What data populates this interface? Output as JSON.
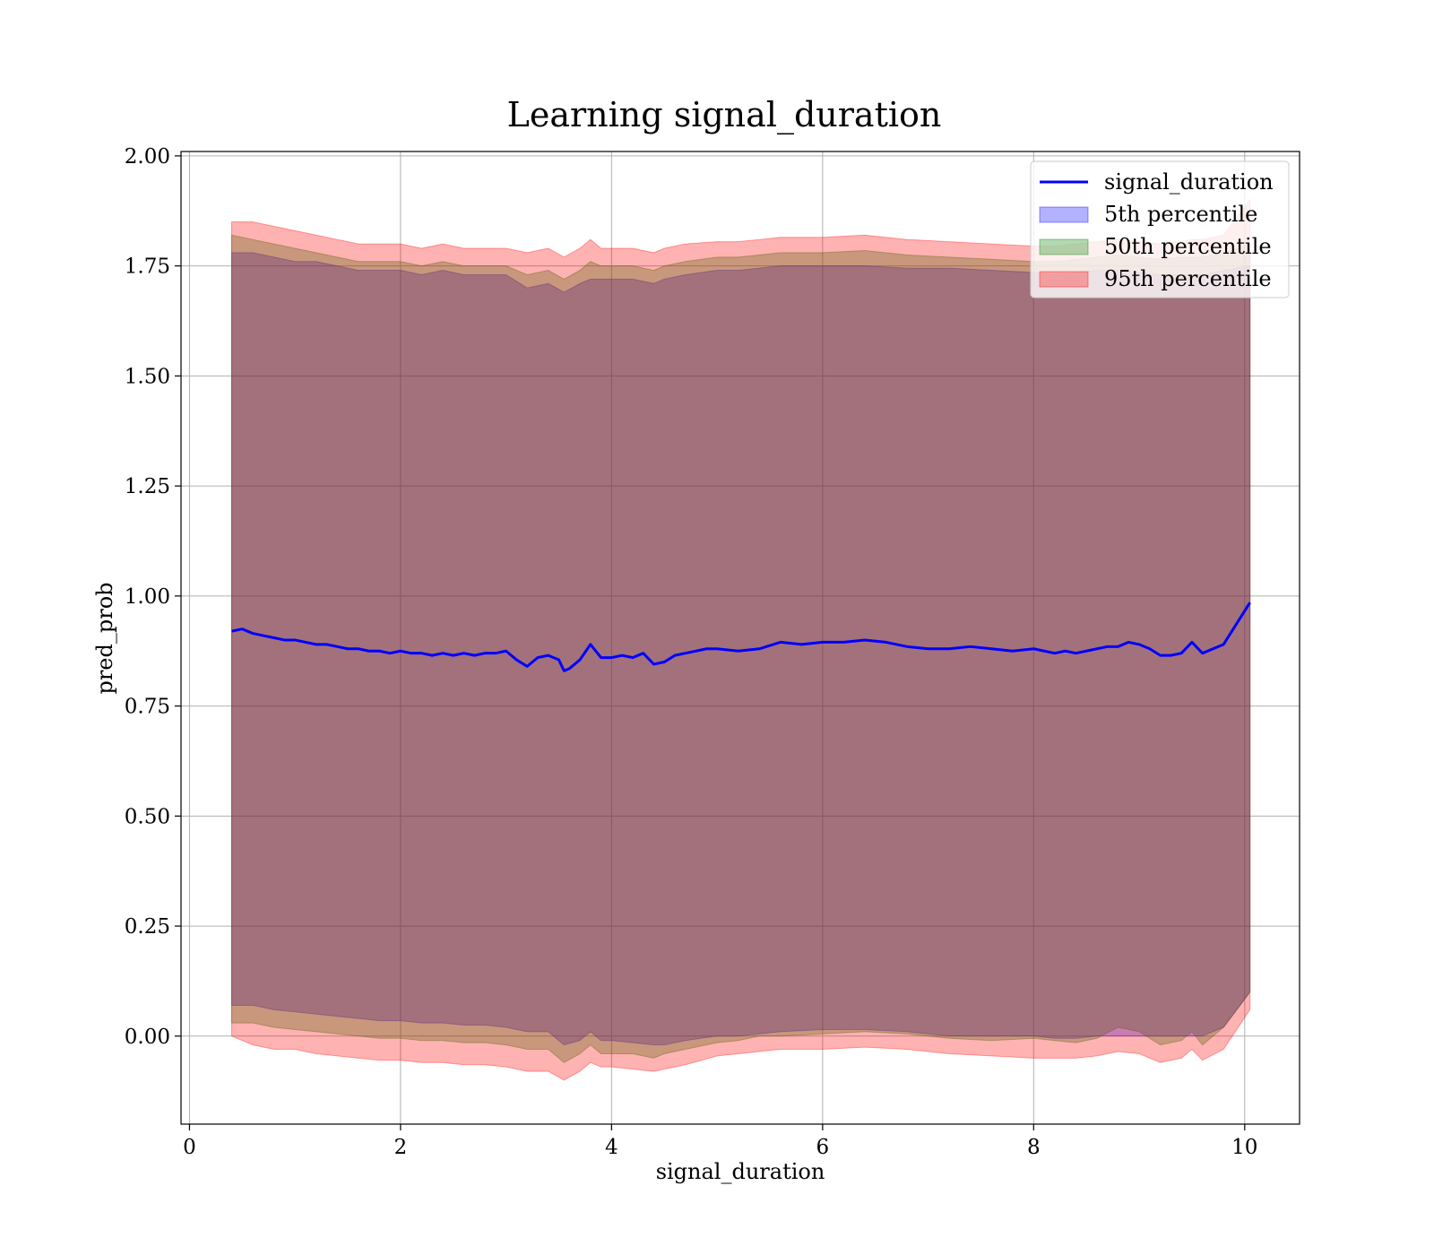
{
  "chart_data": {
    "type": "area",
    "title": "Learning signal_duration",
    "xlabel": "signal_duration",
    "ylabel": "pred_prob",
    "xlim": [
      -0.08,
      10.52
    ],
    "ylim": [
      -0.2,
      2.01
    ],
    "xticks": [
      0,
      2,
      4,
      6,
      8,
      10
    ],
    "xtick_labels": [
      "0",
      "2",
      "4",
      "6",
      "8",
      "10"
    ],
    "yticks": [
      0.0,
      0.25,
      0.5,
      0.75,
      1.0,
      1.25,
      1.5,
      1.75,
      2.0
    ],
    "ytick_labels": [
      "0.00",
      "0.25",
      "0.50",
      "0.75",
      "1.00",
      "1.25",
      "1.50",
      "1.75",
      "2.00"
    ],
    "grid": true,
    "legend_position": "top-right",
    "legend": [
      {
        "label": "signal_duration",
        "kind": "line",
        "color": "#0000ff"
      },
      {
        "label": "5th percentile",
        "kind": "patch",
        "color": "#0000ff"
      },
      {
        "label": "50th percentile",
        "kind": "patch",
        "color": "#008000"
      },
      {
        "label": "95th percentile",
        "kind": "patch",
        "color": "#ff0000"
      }
    ],
    "series": [
      {
        "name": "signal_duration",
        "kind": "line",
        "color": "#0000ff",
        "x": [
          0.4,
          0.5,
          0.6,
          0.7,
          0.8,
          0.9,
          1.0,
          1.1,
          1.2,
          1.3,
          1.4,
          1.5,
          1.6,
          1.7,
          1.8,
          1.9,
          2.0,
          2.1,
          2.2,
          2.3,
          2.4,
          2.5,
          2.6,
          2.7,
          2.8,
          2.9,
          3.0,
          3.1,
          3.2,
          3.3,
          3.4,
          3.5,
          3.55,
          3.6,
          3.7,
          3.8,
          3.9,
          4.0,
          4.1,
          4.2,
          4.3,
          4.4,
          4.5,
          4.6,
          4.7,
          4.8,
          4.9,
          5.0,
          5.2,
          5.4,
          5.6,
          5.8,
          6.0,
          6.2,
          6.4,
          6.6,
          6.8,
          7.0,
          7.2,
          7.4,
          7.6,
          7.8,
          8.0,
          8.1,
          8.2,
          8.3,
          8.4,
          8.5,
          8.6,
          8.7,
          8.8,
          8.9,
          9.0,
          9.1,
          9.2,
          9.3,
          9.4,
          9.5,
          9.6,
          9.8,
          10.05
        ],
        "y": [
          0.92,
          0.925,
          0.915,
          0.91,
          0.905,
          0.9,
          0.9,
          0.895,
          0.89,
          0.89,
          0.885,
          0.88,
          0.88,
          0.875,
          0.875,
          0.87,
          0.875,
          0.87,
          0.87,
          0.865,
          0.87,
          0.865,
          0.87,
          0.865,
          0.87,
          0.87,
          0.875,
          0.855,
          0.84,
          0.86,
          0.865,
          0.855,
          0.83,
          0.835,
          0.855,
          0.89,
          0.86,
          0.86,
          0.865,
          0.86,
          0.87,
          0.845,
          0.85,
          0.865,
          0.87,
          0.875,
          0.88,
          0.88,
          0.875,
          0.88,
          0.895,
          0.89,
          0.895,
          0.895,
          0.9,
          0.895,
          0.885,
          0.88,
          0.88,
          0.885,
          0.88,
          0.875,
          0.88,
          0.875,
          0.87,
          0.875,
          0.87,
          0.875,
          0.88,
          0.885,
          0.885,
          0.895,
          0.89,
          0.88,
          0.865,
          0.865,
          0.87,
          0.895,
          0.87,
          0.89,
          0.985
        ]
      },
      {
        "name": "5th percentile",
        "kind": "band",
        "color": "#0000ff",
        "x": [
          0.4,
          0.6,
          0.8,
          1.0,
          1.2,
          1.4,
          1.6,
          1.8,
          2.0,
          2.2,
          2.4,
          2.6,
          2.8,
          3.0,
          3.2,
          3.4,
          3.55,
          3.7,
          3.8,
          3.9,
          4.0,
          4.2,
          4.4,
          4.5,
          4.7,
          5.0,
          5.2,
          5.4,
          5.6,
          6.0,
          6.4,
          6.8,
          7.2,
          7.6,
          8.0,
          8.2,
          8.4,
          8.6,
          8.8,
          9.0,
          9.2,
          9.4,
          9.5,
          9.6,
          9.8,
          10.05
        ],
        "lower": [
          0.07,
          0.07,
          0.06,
          0.055,
          0.05,
          0.045,
          0.04,
          0.035,
          0.035,
          0.03,
          0.03,
          0.025,
          0.025,
          0.02,
          0.01,
          0.01,
          -0.02,
          -0.01,
          0.01,
          -0.01,
          -0.01,
          -0.015,
          -0.02,
          -0.02,
          -0.01,
          0.0,
          0.0,
          0.005,
          0.01,
          0.015,
          0.015,
          0.01,
          0.0,
          0.0,
          0.0,
          -0.005,
          -0.005,
          0.0,
          0.0,
          0.0,
          0.0,
          0.0,
          0.0,
          0.0,
          0.02,
          0.1
        ],
        "upper": [
          1.78,
          1.78,
          1.77,
          1.76,
          1.76,
          1.75,
          1.74,
          1.74,
          1.74,
          1.73,
          1.74,
          1.73,
          1.73,
          1.73,
          1.7,
          1.71,
          1.69,
          1.71,
          1.72,
          1.72,
          1.72,
          1.72,
          1.71,
          1.72,
          1.73,
          1.74,
          1.74,
          1.745,
          1.75,
          1.75,
          1.75,
          1.745,
          1.745,
          1.74,
          1.735,
          1.73,
          1.735,
          1.74,
          1.74,
          1.735,
          1.73,
          1.73,
          1.73,
          1.73,
          1.74,
          1.75
        ]
      },
      {
        "name": "50th percentile",
        "kind": "band",
        "color": "#008000",
        "x": [
          0.4,
          0.6,
          0.8,
          1.0,
          1.2,
          1.4,
          1.6,
          1.8,
          2.0,
          2.2,
          2.4,
          2.6,
          2.8,
          3.0,
          3.2,
          3.4,
          3.55,
          3.7,
          3.8,
          3.9,
          4.0,
          4.2,
          4.4,
          4.5,
          4.7,
          5.0,
          5.2,
          5.4,
          5.6,
          6.0,
          6.4,
          6.8,
          7.2,
          7.6,
          8.0,
          8.2,
          8.4,
          8.6,
          8.8,
          9.0,
          9.2,
          9.4,
          9.5,
          9.6,
          9.8,
          10.05
        ],
        "lower": [
          0.03,
          0.03,
          0.02,
          0.015,
          0.01,
          0.005,
          0.0,
          -0.005,
          -0.005,
          -0.01,
          -0.01,
          -0.015,
          -0.015,
          -0.02,
          -0.03,
          -0.03,
          -0.06,
          -0.04,
          -0.02,
          -0.04,
          -0.04,
          -0.04,
          -0.05,
          -0.04,
          -0.03,
          -0.015,
          -0.01,
          0.0,
          0.0,
          0.005,
          0.01,
          0.005,
          -0.005,
          -0.01,
          -0.005,
          -0.01,
          -0.015,
          -0.005,
          0.02,
          0.01,
          -0.02,
          -0.01,
          0.01,
          -0.02,
          0.02,
          0.1
        ],
        "upper": [
          1.82,
          1.81,
          1.8,
          1.79,
          1.78,
          1.77,
          1.76,
          1.76,
          1.76,
          1.75,
          1.76,
          1.75,
          1.75,
          1.75,
          1.73,
          1.74,
          1.72,
          1.74,
          1.76,
          1.75,
          1.75,
          1.75,
          1.74,
          1.75,
          1.76,
          1.77,
          1.77,
          1.775,
          1.78,
          1.78,
          1.785,
          1.775,
          1.77,
          1.765,
          1.76,
          1.76,
          1.765,
          1.77,
          1.775,
          1.77,
          1.765,
          1.77,
          1.77,
          1.77,
          1.78,
          1.8
        ]
      },
      {
        "name": "95th percentile",
        "kind": "band",
        "color": "#ff0000",
        "x": [
          0.4,
          0.6,
          0.8,
          1.0,
          1.2,
          1.4,
          1.6,
          1.8,
          2.0,
          2.2,
          2.4,
          2.6,
          2.8,
          3.0,
          3.2,
          3.4,
          3.55,
          3.7,
          3.8,
          3.9,
          4.0,
          4.2,
          4.4,
          4.5,
          4.7,
          5.0,
          5.2,
          5.4,
          5.6,
          6.0,
          6.4,
          6.8,
          7.2,
          7.6,
          8.0,
          8.2,
          8.4,
          8.6,
          8.8,
          9.0,
          9.2,
          9.4,
          9.5,
          9.6,
          9.8,
          10.05
        ],
        "lower": [
          0.0,
          -0.02,
          -0.03,
          -0.03,
          -0.04,
          -0.045,
          -0.05,
          -0.055,
          -0.055,
          -0.06,
          -0.06,
          -0.065,
          -0.065,
          -0.07,
          -0.08,
          -0.08,
          -0.1,
          -0.08,
          -0.06,
          -0.07,
          -0.07,
          -0.075,
          -0.08,
          -0.075,
          -0.065,
          -0.045,
          -0.04,
          -0.035,
          -0.03,
          -0.03,
          -0.025,
          -0.03,
          -0.04,
          -0.045,
          -0.05,
          -0.05,
          -0.05,
          -0.045,
          -0.035,
          -0.04,
          -0.06,
          -0.05,
          -0.03,
          -0.055,
          -0.03,
          0.06
        ],
        "upper": [
          1.85,
          1.85,
          1.84,
          1.83,
          1.82,
          1.81,
          1.8,
          1.8,
          1.8,
          1.79,
          1.8,
          1.79,
          1.79,
          1.79,
          1.78,
          1.79,
          1.77,
          1.79,
          1.81,
          1.79,
          1.79,
          1.79,
          1.78,
          1.79,
          1.8,
          1.805,
          1.805,
          1.81,
          1.815,
          1.815,
          1.82,
          1.81,
          1.805,
          1.8,
          1.795,
          1.795,
          1.8,
          1.805,
          1.81,
          1.805,
          1.8,
          1.805,
          1.81,
          1.81,
          1.82,
          1.9
        ]
      }
    ]
  }
}
